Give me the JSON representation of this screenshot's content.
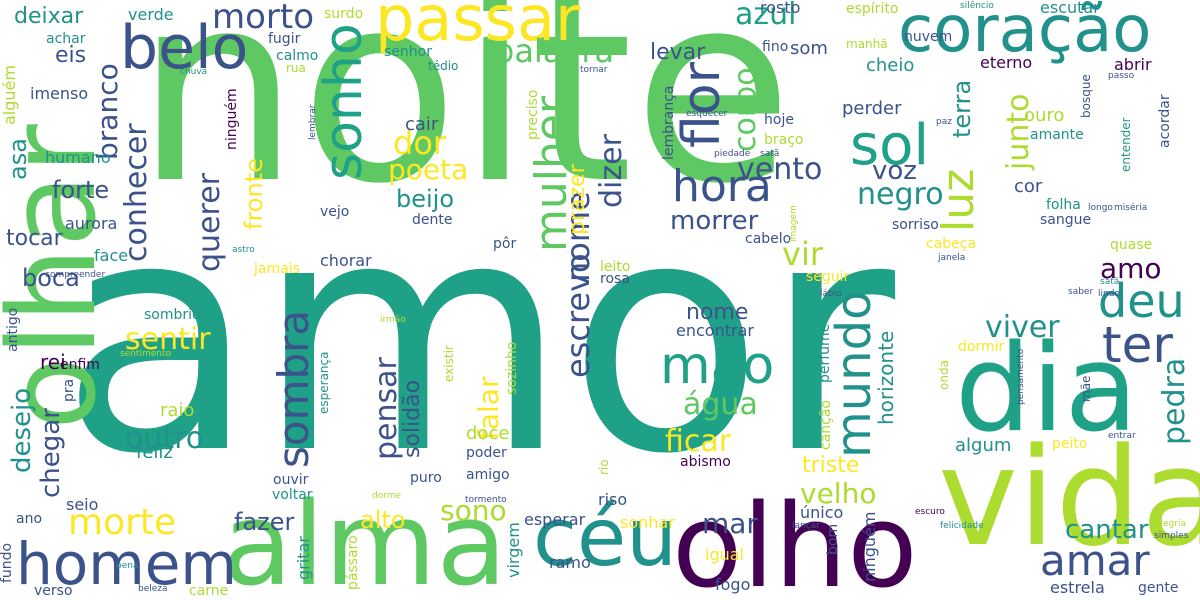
{
  "palette": [
    "#440154",
    "#3b528b",
    "#21918c",
    "#1fa187",
    "#5ec962",
    "#addc30",
    "#fde725"
  ],
  "words": {
    "amor": "amor",
    "noite": "noite",
    "olhar": "olhar",
    "vida": "vida",
    "dia": "dia",
    "alma": "alma",
    "olho": "olho",
    "ceu": "céu",
    "coracao": "coração",
    "passar": "passar",
    "homem": "homem",
    "belo": "belo",
    "sonho": "sonho",
    "morte": "morte",
    "flor": "flor",
    "sol": "sol",
    "hora": "hora",
    "luz": "luz",
    "deu": "deu",
    "ter": "ter",
    "mundo": "mundo",
    "mao": "mão",
    "sombra": "sombra",
    "mulher": "mulher",
    "amar": "amar",
    "viver": "viver",
    "palavra": "palavra",
    "azul": "azul",
    "morto": "morto",
    "corpo": "corpo",
    "conhecer": "conhecer",
    "branco": "branco",
    "querer": "querer",
    "escrevo": "escrevo",
    "nome": "nome",
    "dizer": "dizer",
    "prazer": "prazer",
    "vento": "vento",
    "negro": "negro",
    "voz": "voz",
    "junto": "junto",
    "terra": "terra",
    "dor": "dor",
    "poeta": "poeta",
    "beijo": "beijo",
    "cair": "cair",
    "fronte": "fronte",
    "sentir": "sentir",
    "pensar": "pensar",
    "falar": "falar",
    "solidao": "solidão",
    "agua": "água",
    "ficar": "ficar",
    "outro": "outro",
    "desejo": "desejo",
    "chegar": "chegar",
    "sono": "sono",
    "alto": "alto",
    "mar": "mar",
    "velho": "velho",
    "triste": "triste",
    "cantar": "cantar",
    "pedra": "pedra",
    "morrer": "morrer",
    "vir": "vir",
    "amo": "amo",
    "nome2": "nome",
    "encontrar": "encontrar",
    "horizonte": "horizonte",
    "fazer": "fazer",
    "deixar": "deixar",
    "verde": "verde",
    "eis": "eis",
    "imenso": "imenso",
    "alguem": "alguém",
    "asa": "asa",
    "humano": "humano",
    "forte": "forte",
    "aurora": "aurora",
    "tocar": "tocar",
    "face": "face",
    "boca": "boca",
    "rei": "rei",
    "enfim": "enfim",
    "raio": "raio",
    "feliz": "feliz",
    "doce": "doce",
    "poder": "poder",
    "amigo": "amigo",
    "puro": "puro",
    "ouvir": "ouvir",
    "voltar": "voltar",
    "seio": "seio",
    "ano": "ano",
    "fundo": "fundo",
    "verso": "verso",
    "carne": "carne",
    "esperar": "esperar",
    "sonhar": "sonhar",
    "igual": "igual",
    "fogo": "fogo",
    "ramo": "ramo",
    "virgem": "virgem",
    "gritar": "gritar",
    "passaro": "pássaro",
    "bom": "bom",
    "ninguem": "ninguém",
    "unico": "único",
    "estrela": "estrela",
    "gente": "gente",
    "simples": "simples",
    "alegria": "alegria",
    "felicidade": "felicidade",
    "escuro": "escuro",
    "lancar": "lançar",
    "beleza": "beleza",
    "pena": "pena",
    "rosto": "rosto",
    "espirito": "espírito",
    "escutar": "escutar",
    "silencio": "silêncio",
    "surdo": "surdo",
    "achar": "achar",
    "fugir": "fugir",
    "calmo": "calmo",
    "rua": "rua",
    "senhor": "senhor",
    "tedio": "tédio",
    "chuva": "chuva",
    "levar": "levar",
    "fino": "fino",
    "manha": "manhã",
    "tornar": "tornar",
    "cheio": "cheio",
    "eterno": "eterno",
    "abrir": "abrir",
    "passo": "passo",
    "bosque": "bosque",
    "entender": "entender",
    "acordar": "acordar",
    "longo": "longo",
    "miseria": "miséria",
    "perder": "perder",
    "ouro": "ouro",
    "amante": "amante",
    "lembranca": "lembrança",
    "esquecer": "esquecer",
    "hoje": "hoje",
    "braco": "braço",
    "paz": "paz",
    "piedade": "piedade",
    "sata": "satã",
    "folha": "folha",
    "sangue": "sangue",
    "quase": "quase",
    "cor": "cor",
    "sorriso": "sorriso",
    "cabeca": "cabeça",
    "cabelo": "cabelo",
    "imagem": "imagem",
    "veio": "vejo",
    "dente": "dente",
    "por": "pôr",
    "chorar": "chorar",
    "jamais": "jamais",
    "astro": "astro",
    "leito": "leito",
    "rosa": "rosa",
    "seguir": "seguir",
    "labio": "lábio",
    "janela": "janela",
    "saber": "saber",
    "sata2": "satã",
    "lindo": "lindo",
    "compreender": "compreender",
    "antigo": "antigo",
    "sombrio": "sombrio",
    "sentimento": "sentimento",
    "irmao": "irmão",
    "esperanca": "esperança",
    "existir": "existir",
    "sozinho": "sozinho",
    "preciso": "preciso",
    "lembrar": "lembrar",
    "perfume": "perfume",
    "cancao": "canção",
    "onda": "onda",
    "dormir": "dormir",
    "pensamento": "pensamento",
    "mae": "mãe",
    "algum": "algum",
    "peito": "peito",
    "entrar": "entrar",
    "abismo": "abismo",
    "rio": "rio",
    "dorme": "dorme",
    "tormento": "tormento",
    "riso": "riso",
    "pra": "pra",
    "nuvem": "nuvem",
    "som": "som"
  }
}
